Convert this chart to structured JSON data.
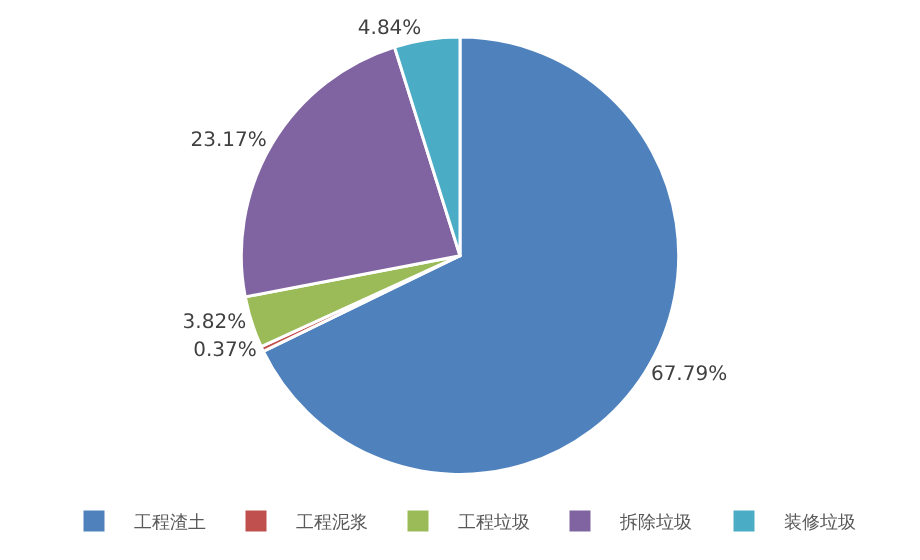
{
  "chart_data": {
    "type": "pie",
    "categories": [
      "工程渣土",
      "工程泥浆",
      "工程垃圾",
      "拆除垃圾",
      "装修垃圾"
    ],
    "values": [
      67.79,
      0.37,
      3.82,
      23.17,
      4.84
    ],
    "colors": [
      "#4f81bd",
      "#c0504d",
      "#9bbb59",
      "#8064a2",
      "#4bacc6"
    ],
    "value_labels": [
      "67.79%",
      "0.37%",
      "3.82%",
      "23.17%",
      "4.84%"
    ],
    "legend": "bottom"
  }
}
